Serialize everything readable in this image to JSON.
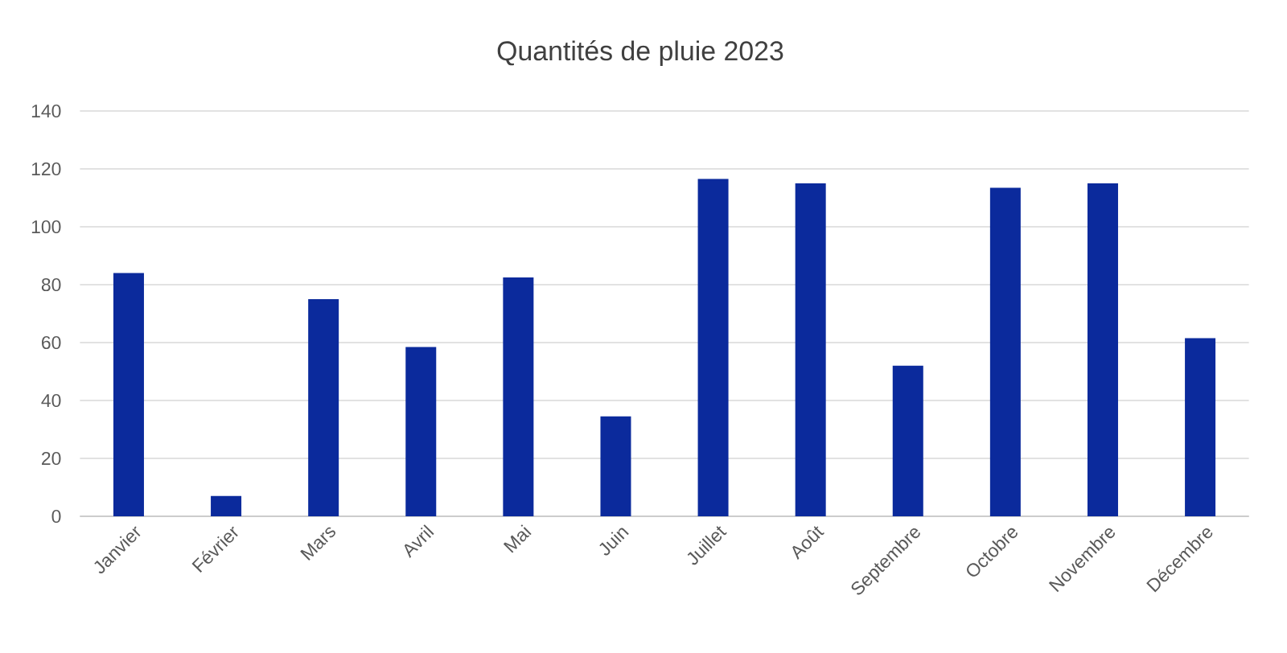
{
  "chart_data": {
    "type": "bar",
    "title": "Quantités de pluie 2023",
    "categories": [
      "Janvier",
      "Février",
      "Mars",
      "Avril",
      "Mai",
      "Juin",
      "Juillet",
      "Août",
      "Septembre",
      "Octobre",
      "Novembre",
      "Décembre"
    ],
    "values": [
      84,
      7,
      75,
      58.5,
      82.5,
      34.5,
      116.5,
      115,
      52,
      113.5,
      115,
      61.5
    ],
    "color": "#0b2a9c",
    "ylim": [
      0,
      140
    ],
    "yticks": [
      0,
      20,
      40,
      60,
      80,
      100,
      120,
      140
    ],
    "grid": "y"
  }
}
